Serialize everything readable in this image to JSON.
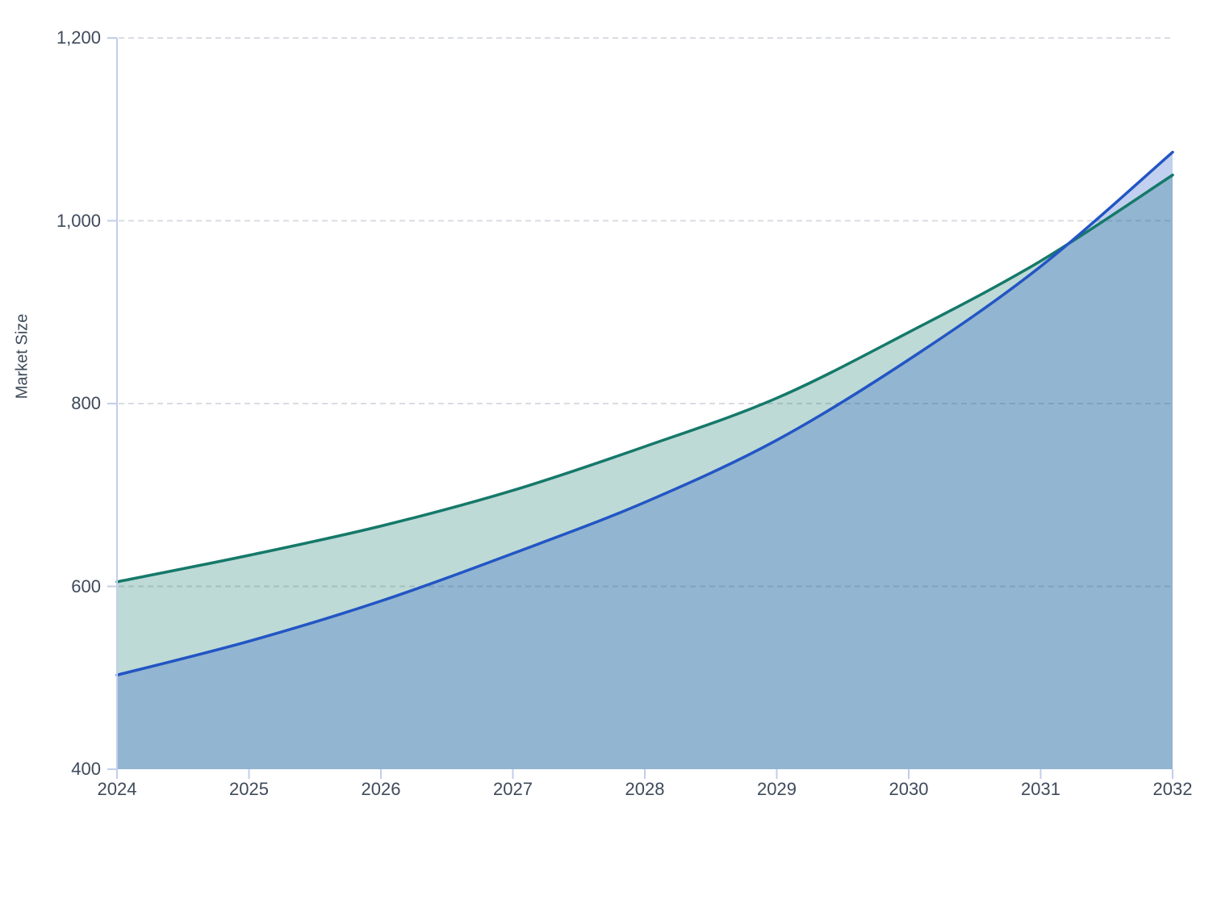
{
  "chart_data": {
    "type": "area",
    "title": "",
    "xlabel": "",
    "ylabel": "Market Size",
    "x": [
      2024,
      2025,
      2026,
      2027,
      2028,
      2029,
      2030,
      2031,
      2032
    ],
    "x_tick_labels": [
      "2024",
      "2025",
      "2026",
      "2027",
      "2028",
      "2029",
      "2030",
      "2031",
      "2032"
    ],
    "y_ticks": [
      400,
      600,
      800,
      1000,
      1200
    ],
    "y_tick_labels": [
      "400",
      "600",
      "800",
      "1,000",
      "1,200"
    ],
    "ylim": [
      400,
      1200
    ],
    "xlim": [
      2024,
      2032
    ],
    "grid": "horizontal-dashed",
    "legend": "none",
    "series": [
      {
        "name": "green_series",
        "line_color": "#15796a",
        "fill_opacity": 0.28,
        "values": [
          605,
          634,
          666,
          705,
          753,
          806,
          878,
          956,
          1050
        ]
      },
      {
        "name": "blue_series",
        "line_color": "#2255c4",
        "fill_opacity": 0.28,
        "values": [
          503,
          540,
          584,
          636,
          692,
          760,
          848,
          950,
          1075
        ]
      }
    ],
    "colors": {
      "background": "#ffffff",
      "gridline": "#d9dce1",
      "axis": "#c3cdec",
      "tick_text": "#3e4a5b",
      "green_line": "#15796a",
      "blue_line": "#2255c4"
    }
  }
}
